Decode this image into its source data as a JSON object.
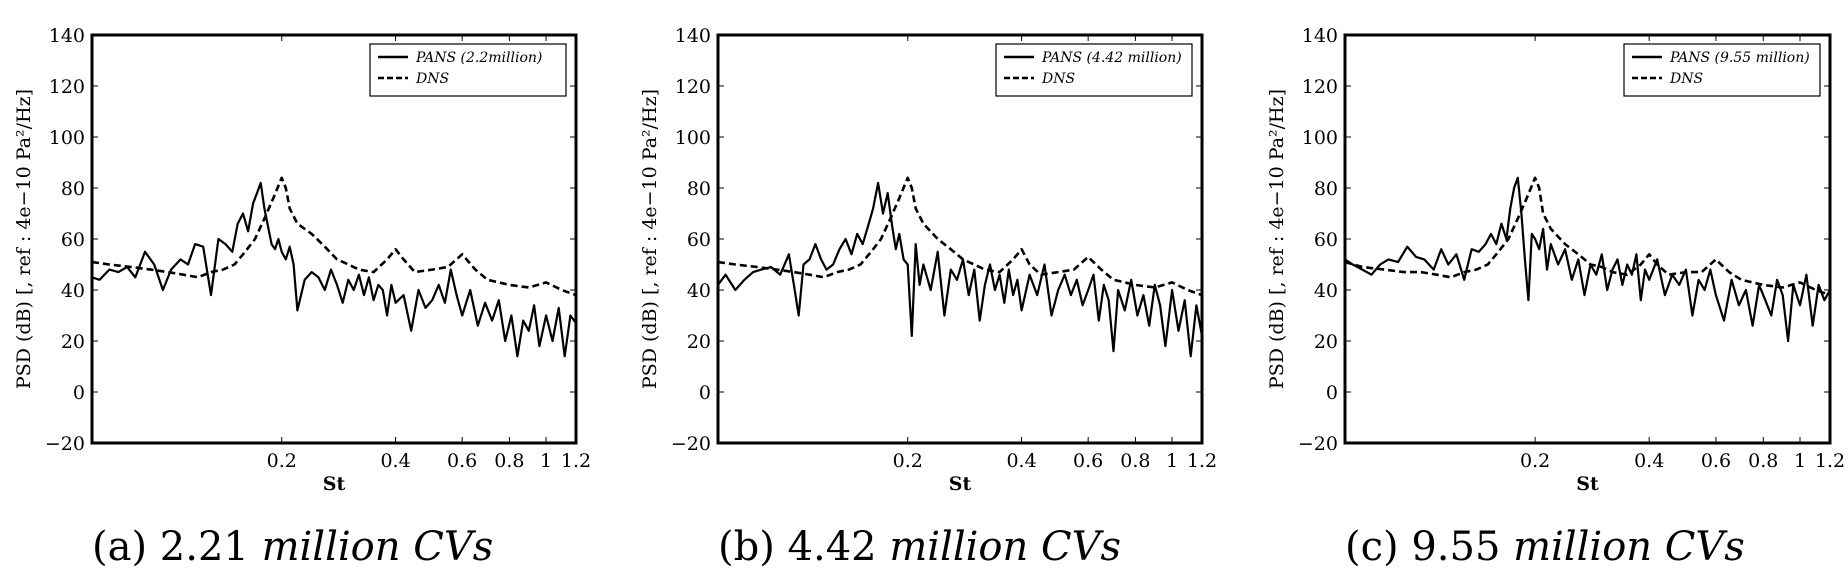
{
  "chart_data": [
    {
      "type": "line",
      "caption_prefix": "(a) 2.21",
      "caption_suffix": "million CVs",
      "xlabel": "St",
      "ylabel": "PSD (dB) [, ref : 4e−10 Pa²/Hz]",
      "xscale": "log",
      "xlim": [
        0.063,
        1.2
      ],
      "ylim": [
        -20,
        140
      ],
      "yticks": [
        -20,
        0,
        20,
        40,
        60,
        80,
        100,
        120,
        140
      ],
      "xticks": [
        0.2,
        0.4,
        0.6,
        0.8,
        1,
        1.2
      ],
      "xtick_labels": [
        "0.2",
        "0.4",
        "0.6",
        "0.8",
        "1",
        "1.2"
      ],
      "legend_position": "top-right",
      "series": [
        {
          "name": "PANS (2.2million)",
          "style": "solid",
          "x": [
            0.063,
            0.066,
            0.07,
            0.074,
            0.078,
            0.082,
            0.087,
            0.092,
            0.097,
            0.102,
            0.108,
            0.113,
            0.118,
            0.124,
            0.13,
            0.136,
            0.142,
            0.148,
            0.153,
            0.158,
            0.163,
            0.168,
            0.172,
            0.176,
            0.18,
            0.184,
            0.188,
            0.192,
            0.196,
            0.2,
            0.205,
            0.21,
            0.215,
            0.22,
            0.23,
            0.24,
            0.25,
            0.26,
            0.27,
            0.28,
            0.29,
            0.3,
            0.31,
            0.32,
            0.33,
            0.34,
            0.35,
            0.36,
            0.37,
            0.38,
            0.39,
            0.4,
            0.42,
            0.44,
            0.46,
            0.48,
            0.5,
            0.52,
            0.54,
            0.56,
            0.58,
            0.6,
            0.63,
            0.66,
            0.69,
            0.72,
            0.75,
            0.78,
            0.81,
            0.84,
            0.87,
            0.9,
            0.93,
            0.96,
            1.0,
            1.04,
            1.08,
            1.12,
            1.16,
            1.2
          ],
          "y": [
            45,
            44,
            48,
            47,
            49,
            45,
            55,
            50,
            40,
            48,
            52,
            50,
            58,
            57,
            38,
            60,
            58,
            55,
            66,
            70,
            63,
            74,
            78,
            82,
            72,
            65,
            58,
            56,
            60,
            55,
            52,
            57,
            50,
            32,
            44,
            47,
            45,
            40,
            48,
            42,
            35,
            44,
            40,
            46,
            38,
            45,
            36,
            42,
            40,
            30,
            42,
            35,
            38,
            24,
            40,
            33,
            36,
            42,
            35,
            48,
            38,
            30,
            40,
            26,
            35,
            28,
            36,
            20,
            30,
            14,
            28,
            24,
            34,
            18,
            30,
            20,
            33,
            14,
            30,
            27
          ]
        },
        {
          "name": "DNS",
          "style": "dashed",
          "x": [
            0.063,
            0.07,
            0.08,
            0.09,
            0.1,
            0.11,
            0.12,
            0.13,
            0.14,
            0.15,
            0.16,
            0.17,
            0.18,
            0.19,
            0.2,
            0.205,
            0.21,
            0.22,
            0.24,
            0.26,
            0.28,
            0.3,
            0.32,
            0.35,
            0.38,
            0.4,
            0.42,
            0.45,
            0.5,
            0.55,
            0.6,
            0.65,
            0.7,
            0.8,
            0.9,
            1.0,
            1.1,
            1.2
          ],
          "y": [
            51,
            50,
            49,
            48,
            47,
            46,
            45,
            47,
            48,
            50,
            55,
            60,
            68,
            76,
            84,
            80,
            72,
            66,
            62,
            57,
            52,
            50,
            48,
            47,
            52,
            56,
            52,
            47,
            48,
            49,
            54,
            48,
            44,
            42,
            41,
            43,
            40,
            38
          ]
        }
      ]
    },
    {
      "type": "line",
      "caption_prefix": "(b) 4.42",
      "caption_suffix": "million CVs",
      "xlabel": "St",
      "ylabel": "PSD (dB) [, ref : 4e−10 Pa²/Hz]",
      "xscale": "log",
      "xlim": [
        0.063,
        1.2
      ],
      "ylim": [
        -20,
        140
      ],
      "yticks": [
        -20,
        0,
        20,
        40,
        60,
        80,
        100,
        120,
        140
      ],
      "xticks": [
        0.2,
        0.4,
        0.6,
        0.8,
        1,
        1.2
      ],
      "xtick_labels": [
        "0.2",
        "0.4",
        "0.6",
        "0.8",
        "1",
        "1.2"
      ],
      "legend_position": "top-right",
      "series": [
        {
          "name": "PANS (4.42 million)",
          "style": "solid",
          "x": [
            0.063,
            0.066,
            0.07,
            0.074,
            0.078,
            0.082,
            0.087,
            0.092,
            0.097,
            0.1,
            0.103,
            0.106,
            0.11,
            0.114,
            0.118,
            0.122,
            0.127,
            0.132,
            0.137,
            0.142,
            0.147,
            0.152,
            0.157,
            0.162,
            0.167,
            0.172,
            0.177,
            0.182,
            0.186,
            0.19,
            0.195,
            0.2,
            0.205,
            0.21,
            0.215,
            0.22,
            0.23,
            0.24,
            0.25,
            0.26,
            0.27,
            0.28,
            0.29,
            0.3,
            0.31,
            0.32,
            0.33,
            0.34,
            0.35,
            0.36,
            0.37,
            0.38,
            0.39,
            0.4,
            0.42,
            0.44,
            0.46,
            0.48,
            0.5,
            0.52,
            0.54,
            0.56,
            0.58,
            0.6,
            0.62,
            0.64,
            0.66,
            0.68,
            0.7,
            0.72,
            0.75,
            0.78,
            0.81,
            0.84,
            0.87,
            0.9,
            0.93,
            0.96,
            1.0,
            1.04,
            1.08,
            1.12,
            1.16,
            1.2
          ],
          "y": [
            42,
            46,
            40,
            44,
            47,
            48,
            49,
            46,
            54,
            42,
            30,
            50,
            52,
            58,
            52,
            48,
            50,
            56,
            60,
            54,
            62,
            58,
            65,
            72,
            82,
            70,
            78,
            65,
            56,
            62,
            52,
            50,
            22,
            58,
            42,
            50,
            40,
            55,
            30,
            48,
            44,
            52,
            38,
            48,
            28,
            42,
            50,
            40,
            46,
            35,
            48,
            38,
            44,
            32,
            46,
            38,
            50,
            30,
            40,
            46,
            38,
            44,
            34,
            40,
            46,
            28,
            42,
            36,
            16,
            40,
            32,
            44,
            30,
            38,
            26,
            42,
            34,
            18,
            40,
            24,
            36,
            14,
            34,
            22
          ]
        },
        {
          "name": "DNS",
          "style": "dashed",
          "x": [
            0.063,
            0.07,
            0.08,
            0.09,
            0.1,
            0.11,
            0.12,
            0.13,
            0.14,
            0.15,
            0.16,
            0.17,
            0.18,
            0.19,
            0.2,
            0.205,
            0.21,
            0.22,
            0.24,
            0.26,
            0.28,
            0.3,
            0.32,
            0.35,
            0.38,
            0.4,
            0.42,
            0.45,
            0.5,
            0.55,
            0.6,
            0.65,
            0.7,
            0.8,
            0.9,
            1.0,
            1.1,
            1.2
          ],
          "y": [
            51,
            50,
            49,
            48,
            47,
            46,
            45,
            47,
            48,
            50,
            55,
            60,
            68,
            76,
            84,
            80,
            72,
            66,
            60,
            56,
            52,
            50,
            48,
            47,
            52,
            56,
            50,
            46,
            47,
            48,
            53,
            48,
            44,
            42,
            41,
            43,
            40,
            38
          ]
        }
      ]
    },
    {
      "type": "line",
      "caption_prefix": "(c) 9.55",
      "caption_suffix": "million CVs",
      "xlabel": "St",
      "ylabel": "PSD (dB) [, ref : 4e−10 Pa²/Hz]",
      "xscale": "log",
      "xlim": [
        0.063,
        1.2
      ],
      "ylim": [
        -20,
        140
      ],
      "yticks": [
        -20,
        0,
        20,
        40,
        60,
        80,
        100,
        120,
        140
      ],
      "xticks": [
        0.2,
        0.4,
        0.6,
        0.8,
        1,
        1.2
      ],
      "xtick_labels": [
        "0.2",
        "0.4",
        "0.6",
        "0.8",
        "1",
        "1.2"
      ],
      "legend_position": "top-right",
      "series": [
        {
          "name": "PANS (9.55 million)",
          "style": "solid",
          "x": [
            0.063,
            0.066,
            0.07,
            0.074,
            0.078,
            0.082,
            0.087,
            0.092,
            0.097,
            0.102,
            0.108,
            0.113,
            0.118,
            0.124,
            0.13,
            0.136,
            0.142,
            0.148,
            0.153,
            0.158,
            0.163,
            0.168,
            0.172,
            0.176,
            0.18,
            0.184,
            0.188,
            0.192,
            0.196,
            0.2,
            0.205,
            0.21,
            0.215,
            0.22,
            0.23,
            0.24,
            0.25,
            0.26,
            0.27,
            0.28,
            0.29,
            0.3,
            0.31,
            0.32,
            0.33,
            0.34,
            0.35,
            0.36,
            0.37,
            0.38,
            0.39,
            0.4,
            0.42,
            0.44,
            0.46,
            0.48,
            0.5,
            0.52,
            0.54,
            0.56,
            0.58,
            0.6,
            0.63,
            0.66,
            0.69,
            0.72,
            0.75,
            0.78,
            0.81,
            0.84,
            0.87,
            0.9,
            0.93,
            0.96,
            1.0,
            1.04,
            1.08,
            1.12,
            1.16,
            1.2
          ],
          "y": [
            52,
            50,
            48,
            46,
            50,
            52,
            51,
            57,
            53,
            52,
            48,
            56,
            50,
            54,
            44,
            56,
            55,
            58,
            62,
            58,
            66,
            60,
            72,
            80,
            84,
            70,
            52,
            36,
            62,
            60,
            56,
            64,
            48,
            58,
            50,
            56,
            44,
            52,
            38,
            50,
            46,
            54,
            40,
            48,
            52,
            42,
            50,
            46,
            54,
            36,
            48,
            44,
            52,
            38,
            46,
            42,
            48,
            30,
            44,
            40,
            48,
            38,
            28,
            44,
            34,
            40,
            26,
            42,
            36,
            30,
            44,
            38,
            20,
            42,
            34,
            46,
            26,
            42,
            36,
            40
          ]
        },
        {
          "name": "DNS",
          "style": "dashed",
          "x": [
            0.063,
            0.07,
            0.08,
            0.09,
            0.1,
            0.11,
            0.12,
            0.13,
            0.14,
            0.15,
            0.16,
            0.17,
            0.18,
            0.19,
            0.2,
            0.205,
            0.21,
            0.22,
            0.24,
            0.26,
            0.28,
            0.3,
            0.32,
            0.35,
            0.38,
            0.4,
            0.42,
            0.45,
            0.5,
            0.55,
            0.6,
            0.65,
            0.7,
            0.8,
            0.9,
            1.0,
            1.1,
            1.2
          ],
          "y": [
            51,
            49,
            48,
            47,
            47,
            46,
            45,
            47,
            48,
            50,
            55,
            60,
            68,
            76,
            84,
            80,
            70,
            64,
            58,
            54,
            50,
            49,
            47,
            46,
            50,
            54,
            50,
            46,
            47,
            47,
            52,
            47,
            44,
            42,
            41,
            43,
            40,
            38
          ]
        }
      ]
    }
  ]
}
